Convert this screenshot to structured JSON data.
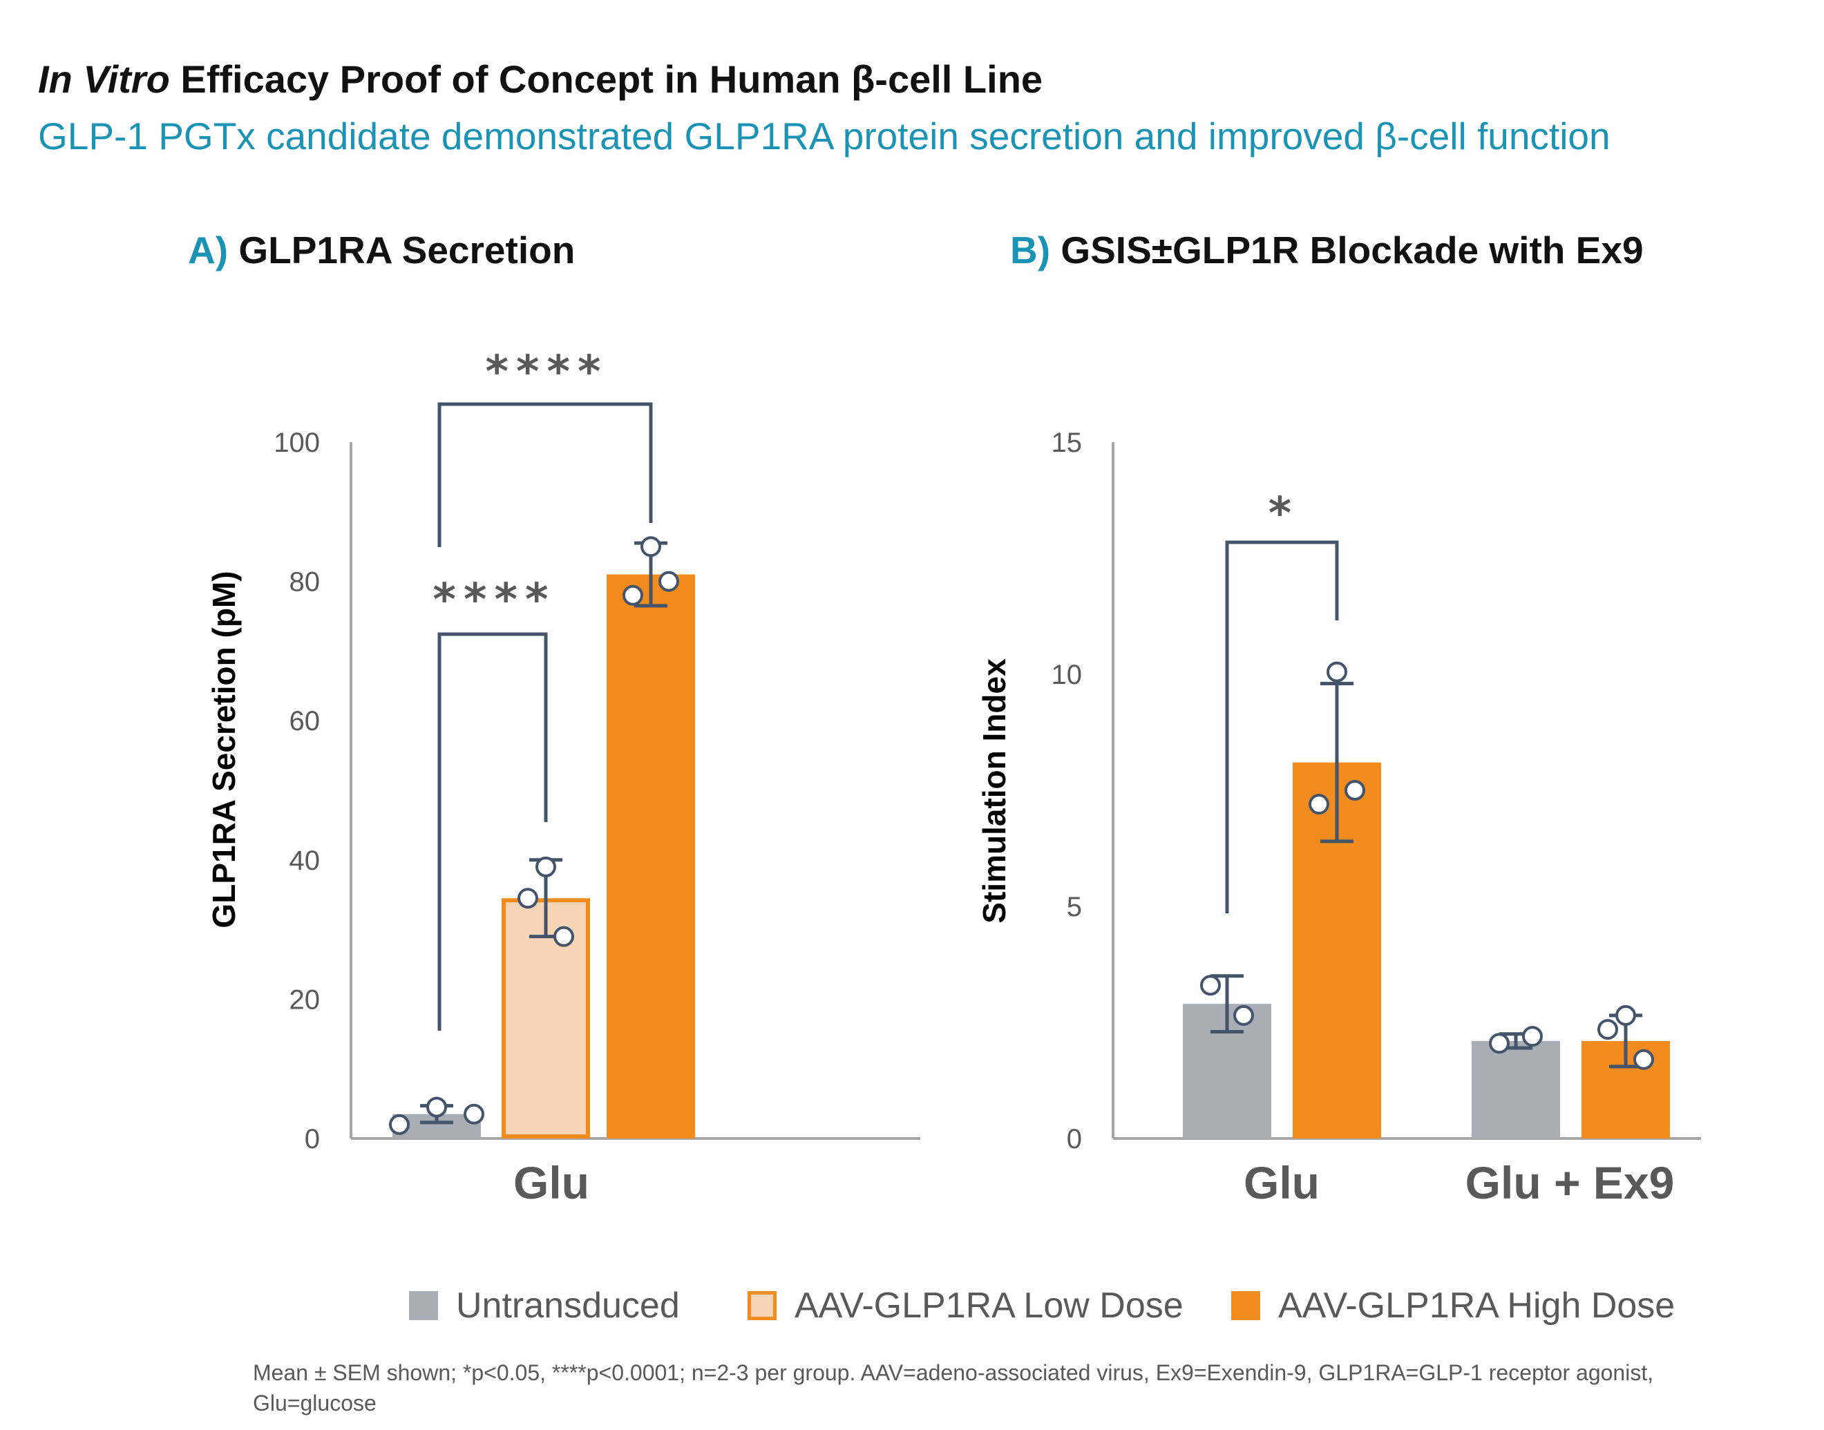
{
  "title_italic": "In Vitro",
  "title_rest": " Efficacy Proof of Concept in Human β-cell Line",
  "subtitle": "GLP-1 PGTx candidate demonstrated GLP1RA protein secretion and improved β-cell function",
  "colors": {
    "accent": "#1b93b5",
    "untransduced": "#a9aeb5",
    "low_dose_fill": "#f9d5b7",
    "low_dose_edge": "#f28c1e",
    "high_dose": "#f28c1e",
    "axis": "#a6a6a6",
    "errorbar": "#44546a",
    "tick_text": "#595959"
  },
  "legend": [
    {
      "label": "Untransduced",
      "key": "untransduced"
    },
    {
      "label": "AAV-GLP1RA Low Dose",
      "key": "low"
    },
    {
      "label": "AAV-GLP1RA High Dose",
      "key": "high"
    }
  ],
  "footnote": "Mean ± SEM shown; *p<0.05, ****p<0.0001; n=2-3 per group. AAV=adeno-associated virus, Ex9=Exendin-9, GLP1RA=GLP-1 receptor agonist, Glu=glucose",
  "chart_data": [
    {
      "panel_letter": "A)",
      "panel_title": "GLP1RA Secretion",
      "type": "bar",
      "ylabel": "GLP1RA Secretion (pM)",
      "ylim": [
        0,
        100
      ],
      "yticks": [
        "0",
        "20",
        "40",
        "60",
        "80",
        "100"
      ],
      "categories": [
        "Glu"
      ],
      "series": [
        {
          "name": "Untransduced",
          "key": "untransduced",
          "values": [
            3.5
          ],
          "err": [
            1.2
          ],
          "points": [
            [
              2.0,
              4.5,
              3.5
            ]
          ]
        },
        {
          "name": "AAV-GLP1RA Low Dose",
          "key": "low",
          "values": [
            34.5
          ],
          "err": [
            5.5
          ],
          "points": [
            [
              39.0,
              34.5,
              29.0
            ]
          ]
        },
        {
          "name": "AAV-GLP1RA High Dose",
          "key": "high",
          "values": [
            81.0
          ],
          "err": [
            4.5
          ],
          "points": [
            [
              85.0,
              78.0,
              80.0
            ]
          ]
        }
      ],
      "significance": [
        {
          "label": "****",
          "from": "Untransduced",
          "to": "AAV-GLP1RA Low Dose"
        },
        {
          "label": "****",
          "from": "Untransduced",
          "to": "AAV-GLP1RA High Dose"
        }
      ]
    },
    {
      "panel_letter": "B)",
      "panel_title": "GSIS±GLP1R Blockade with Ex9",
      "type": "bar",
      "ylabel": "Stimulation Index",
      "ylim": [
        0,
        15
      ],
      "yticks": [
        "0",
        "5",
        "10",
        "15"
      ],
      "categories": [
        "Glu",
        "Glu + Ex9"
      ],
      "series": [
        {
          "name": "Untransduced",
          "key": "untransduced",
          "values": [
            2.9,
            2.1
          ],
          "err": [
            0.6,
            0.15
          ],
          "points": [
            [
              3.3,
              2.65
            ],
            [
              2.05,
              2.2
            ]
          ]
        },
        {
          "name": "AAV-GLP1RA High Dose",
          "key": "high",
          "values": [
            8.1,
            2.1
          ],
          "err": [
            1.7,
            0.55
          ],
          "points": [
            [
              10.05,
              7.2,
              7.5
            ],
            [
              2.65,
              2.35,
              1.7
            ]
          ]
        }
      ],
      "significance": [
        {
          "label": "*",
          "from": "Untransduced",
          "to": "AAV-GLP1RA High Dose",
          "category": "Glu"
        }
      ]
    }
  ]
}
